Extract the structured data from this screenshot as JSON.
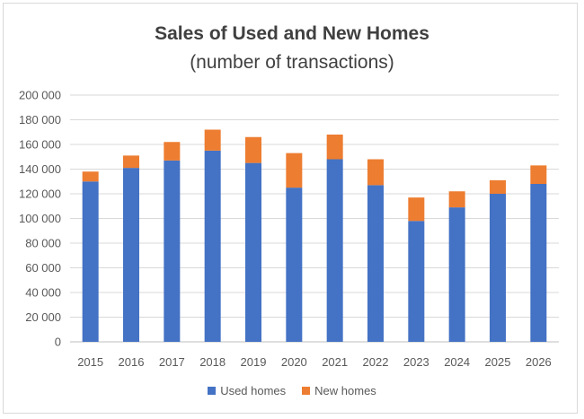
{
  "chart_data": {
    "type": "bar",
    "stacked": true,
    "title": "Sales of Used and New Homes",
    "subtitle": "(number of transactions)",
    "xlabel": "",
    "ylabel": "",
    "ylim": [
      0,
      200000
    ],
    "yticks": [
      0,
      20000,
      40000,
      60000,
      80000,
      100000,
      120000,
      140000,
      160000,
      180000,
      200000
    ],
    "ytick_labels": [
      "0",
      "20 000",
      "40 000",
      "60 000",
      "80 000",
      "100 000",
      "120 000",
      "140 000",
      "160 000",
      "180 000",
      "200 000"
    ],
    "categories": [
      "2015",
      "2016",
      "2017",
      "2018",
      "2019",
      "2020",
      "2021",
      "2022",
      "2023",
      "2024",
      "2025",
      "2026"
    ],
    "series": [
      {
        "name": "Used homes",
        "color": "#4472c4",
        "values": [
          130000,
          141000,
          147000,
          155000,
          145000,
          125000,
          148000,
          127000,
          98000,
          109000,
          120000,
          128000
        ]
      },
      {
        "name": "New homes",
        "color": "#ed7d31",
        "values": [
          8000,
          10000,
          15000,
          17000,
          21000,
          28000,
          20000,
          21000,
          19000,
          13000,
          11000,
          15000
        ]
      }
    ],
    "grid": true,
    "legend_position": "bottom"
  }
}
